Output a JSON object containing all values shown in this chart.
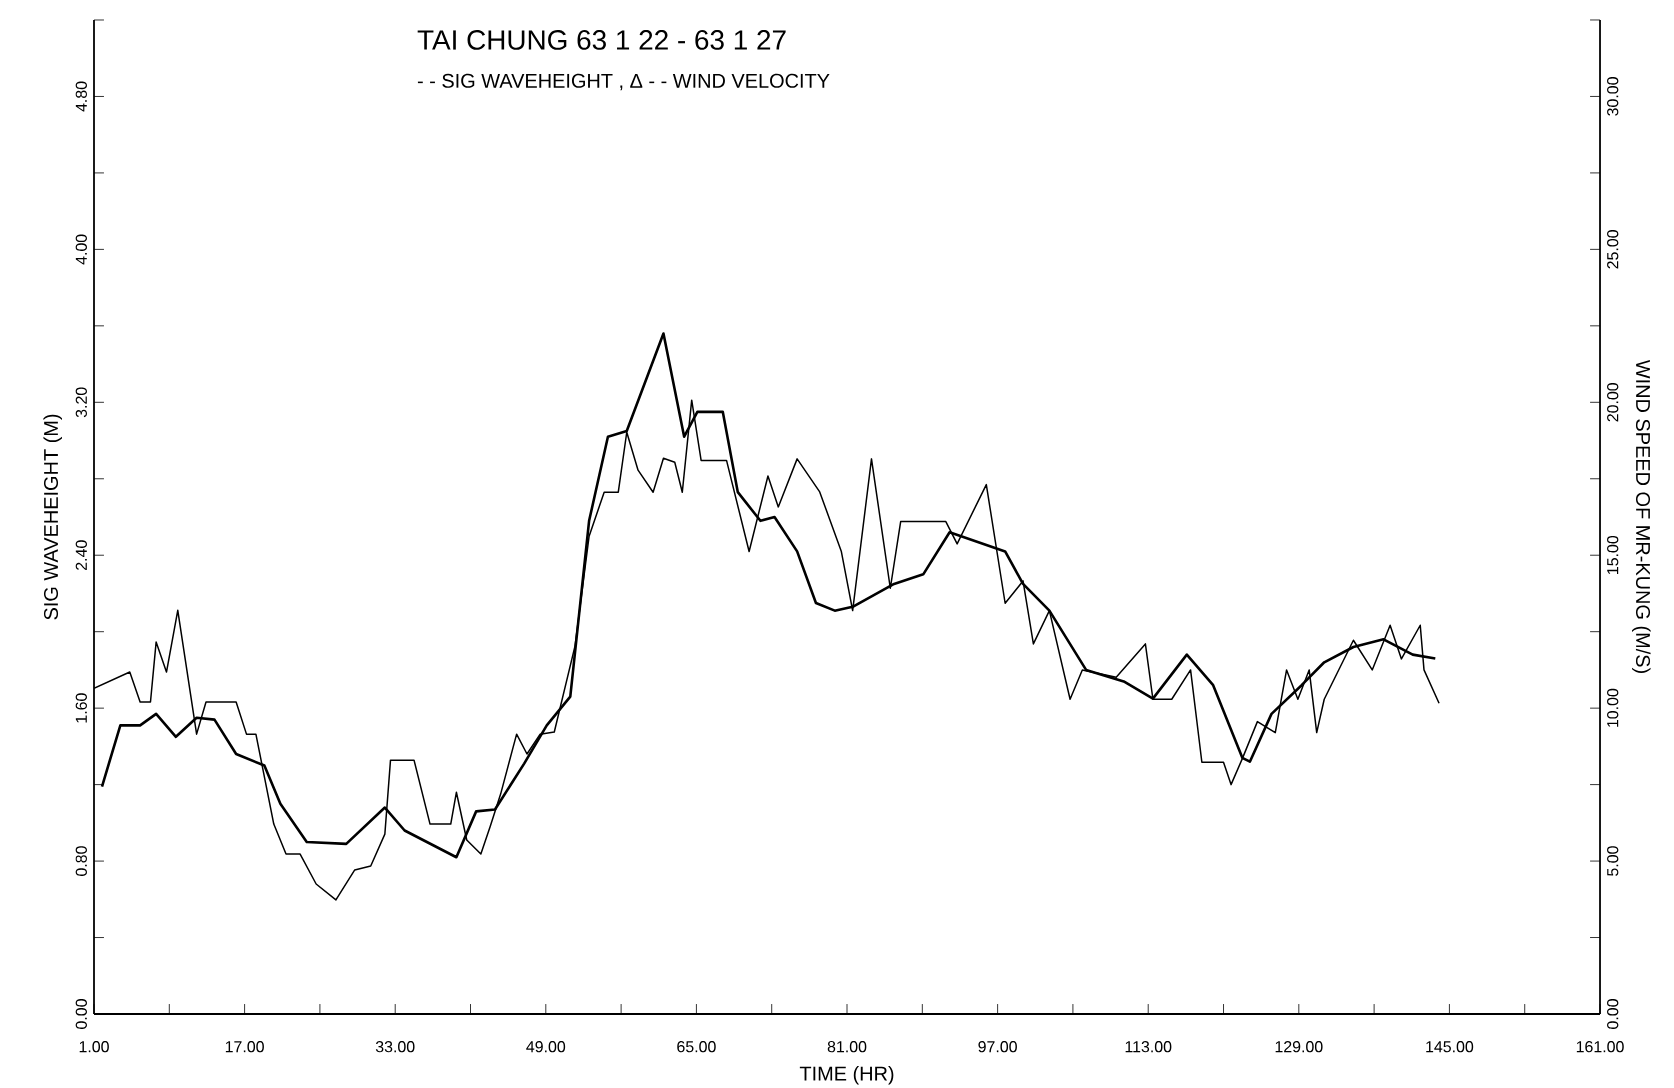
{
  "chart_data": {
    "type": "line",
    "title": "TAI CHUNG    63  1 22 - 63  1 27",
    "subtitle": "- - SIG WAVEHEIGHT , Δ - - WIND VELOCITY",
    "xlabel": "TIME (HR)",
    "ylabel": "SIG WAVEHEIGHT (M)",
    "y2label": "WIND SPEED OF MR-KUNG (M/S)",
    "xlim": [
      1,
      161
    ],
    "xticks": [
      {
        "value": 1,
        "label": "1.00"
      },
      {
        "value": 9,
        "label": null
      },
      {
        "value": 17,
        "label": "17.00"
      },
      {
        "value": 25,
        "label": null
      },
      {
        "value": 33,
        "label": "33.00"
      },
      {
        "value": 41,
        "label": null
      },
      {
        "value": 49,
        "label": "49.00"
      },
      {
        "value": 57,
        "label": null
      },
      {
        "value": 65,
        "label": "65.00"
      },
      {
        "value": 73,
        "label": null
      },
      {
        "value": 81,
        "label": "81.00"
      },
      {
        "value": 89,
        "label": null
      },
      {
        "value": 97,
        "label": "97.00"
      },
      {
        "value": 105,
        "label": null
      },
      {
        "value": 113,
        "label": "113.00"
      },
      {
        "value": 121,
        "label": null
      },
      {
        "value": 129,
        "label": "129.00"
      },
      {
        "value": 137,
        "label": null
      },
      {
        "value": 145,
        "label": "145.00"
      },
      {
        "value": 153,
        "label": null
      },
      {
        "value": 161,
        "label": "161.00"
      }
    ],
    "ylim": [
      0,
      5.2
    ],
    "yticks": [
      {
        "value": 0,
        "label": "0.00"
      },
      {
        "value": 0.4,
        "label": null
      },
      {
        "value": 0.8,
        "label": "0.80"
      },
      {
        "value": 1.2,
        "label": null
      },
      {
        "value": 1.6,
        "label": "1.60"
      },
      {
        "value": 2.0,
        "label": null
      },
      {
        "value": 2.4,
        "label": "2.40"
      },
      {
        "value": 2.8,
        "label": null
      },
      {
        "value": 3.2,
        "label": "3.20"
      },
      {
        "value": 3.6,
        "label": null
      },
      {
        "value": 4.0,
        "label": "4.00"
      },
      {
        "value": 4.4,
        "label": null
      },
      {
        "value": 4.8,
        "label": "4.80"
      },
      {
        "value": 5.2,
        "label": null
      }
    ],
    "y2lim": [
      0,
      32.5
    ],
    "y2ticks": [
      {
        "value": 0,
        "label": "0.00"
      },
      {
        "value": 2.5,
        "label": null
      },
      {
        "value": 5,
        "label": "5.00"
      },
      {
        "value": 7.5,
        "label": null
      },
      {
        "value": 10,
        "label": "10.00"
      },
      {
        "value": 12.5,
        "label": null
      },
      {
        "value": 15,
        "label": "15.00"
      },
      {
        "value": 17.5,
        "label": null
      },
      {
        "value": 20,
        "label": "20.00"
      },
      {
        "value": 22.5,
        "label": null
      },
      {
        "value": 25,
        "label": "25.00"
      },
      {
        "value": 27.5,
        "label": null
      },
      {
        "value": 30,
        "label": "30.00"
      },
      {
        "value": 32.5,
        "label": null
      }
    ],
    "series": [
      {
        "color": "#000000",
        "x": [
          1.85,
          3.8,
          5.9,
          7.6,
          9.7,
          11.9,
          13.8,
          16.1,
          19.1,
          20.8,
          23.6,
          27.8,
          31.9,
          34.0,
          39.5,
          41.6,
          43.6,
          46.7,
          49.1,
          51.6,
          53.6,
          55.6,
          57.6,
          61.5,
          63.7,
          65.1,
          67.8,
          69.4,
          71.8,
          73.3,
          75.7,
          77.7,
          79.7,
          81.6,
          86.0,
          89.1,
          91.9,
          97.8,
          99.7,
          102.5,
          106.4,
          110.4,
          113.5,
          117.1,
          119.9,
          123.0,
          123.8,
          126.1,
          129.3,
          131.7,
          134.8,
          138.0,
          141.1,
          143.5
        ],
        "values": [
          1.19,
          1.51,
          1.51,
          1.57,
          1.45,
          1.55,
          1.54,
          1.36,
          1.3,
          1.1,
          0.9,
          0.89,
          1.08,
          0.96,
          0.82,
          1.06,
          1.07,
          1.31,
          1.51,
          1.66,
          2.58,
          3.02,
          3.05,
          3.56,
          3.02,
          3.15,
          3.15,
          2.73,
          2.58,
          2.6,
          2.42,
          2.15,
          2.11,
          2.13,
          2.25,
          2.3,
          2.52,
          2.42,
          2.25,
          2.11,
          1.8,
          1.74,
          1.65,
          1.88,
          1.72,
          1.34,
          1.32,
          1.57,
          1.72,
          1.84,
          1.92,
          1.96,
          1.88,
          1.86
        ]
      },
      {
        "color": "#000000",
        "axis": "y2",
        "x": [
          1.0,
          4.8,
          5.9,
          7.0,
          7.6,
          8.7,
          9.9,
          11.9,
          12.9,
          16.1,
          17.2,
          18.2,
          20.1,
          21.4,
          22.9,
          24.6,
          26.7,
          28.7,
          30.4,
          31.9,
          32.5,
          35.0,
          36.7,
          38.9,
          39.5,
          40.6,
          42.1,
          43.1,
          44.2,
          45.9,
          47.0,
          48.4,
          49.9,
          52.1,
          53.6,
          55.2,
          56.7,
          57.6,
          58.8,
          60.4,
          61.5,
          62.7,
          63.5,
          64.5,
          65.5,
          68.2,
          70.6,
          72.6,
          73.7,
          75.7,
          78.1,
          80.4,
          81.6,
          83.6,
          85.6,
          86.7,
          91.5,
          92.7,
          95.8,
          97.8,
          99.7,
          100.8,
          102.5,
          104.7,
          106.0,
          109.6,
          112.7,
          113.5,
          115.5,
          117.5,
          118.7,
          121.0,
          121.8,
          123.0,
          124.6,
          126.5,
          127.7,
          128.9,
          130.1,
          130.9,
          131.7,
          134.8,
          136.8,
          138.7,
          139.9,
          141.9,
          142.3,
          143.9
        ],
        "values": [
          10.65,
          11.18,
          10.2,
          10.2,
          12.16,
          11.18,
          13.2,
          9.15,
          10.2,
          10.2,
          9.15,
          9.15,
          6.21,
          5.23,
          5.23,
          4.25,
          3.73,
          4.71,
          4.84,
          5.88,
          8.3,
          8.3,
          6.21,
          6.21,
          7.25,
          5.69,
          5.23,
          6.14,
          7.19,
          9.15,
          8.5,
          9.15,
          9.22,
          12.03,
          15.62,
          17.06,
          17.06,
          19.02,
          17.78,
          17.06,
          18.17,
          18.04,
          17.06,
          20.07,
          18.1,
          18.1,
          15.12,
          17.59,
          16.58,
          18.15,
          17.07,
          15.12,
          13.19,
          18.15,
          13.92,
          16.1,
          16.1,
          15.37,
          17.31,
          13.43,
          14.16,
          12.1,
          13.19,
          10.29,
          11.25,
          11.01,
          12.1,
          10.29,
          10.29,
          11.25,
          8.23,
          8.23,
          7.5,
          8.35,
          9.56,
          9.2,
          11.25,
          10.29,
          11.25,
          9.2,
          10.29,
          12.22,
          11.25,
          12.71,
          11.61,
          12.71,
          11.25,
          10.16
        ]
      }
    ],
    "grid": false,
    "marker": "none"
  }
}
